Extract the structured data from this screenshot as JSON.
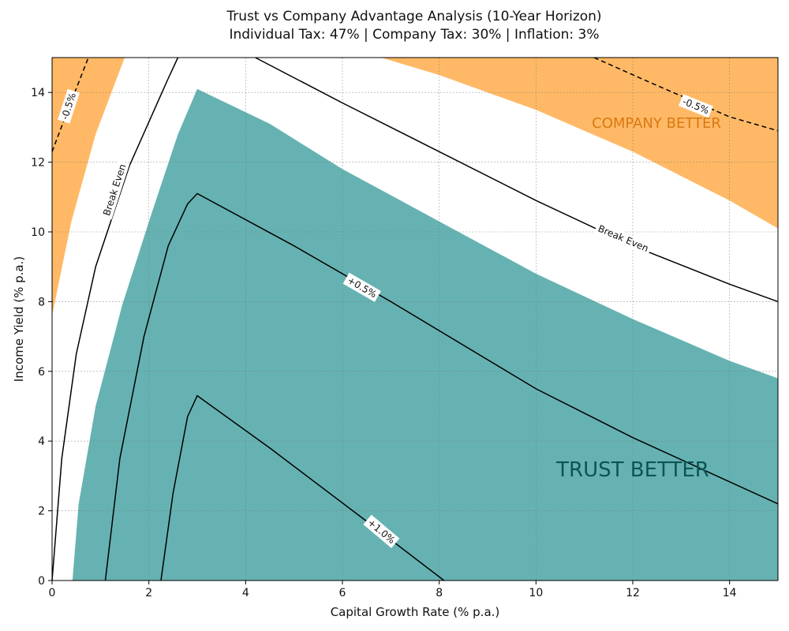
{
  "chart_data": {
    "type": "contour",
    "title_line1": "Trust vs Company Advantage Analysis (10-Year Horizon)",
    "title_line2": "Individual Tax: 47% | Company Tax: 30% | Inflation: 3%",
    "xlabel": "Capital Growth Rate (% p.a.)",
    "ylabel": "Income Yield (% p.a.)",
    "xlim": [
      0,
      15
    ],
    "ylim": [
      0,
      15
    ],
    "xticks": [
      0,
      2,
      4,
      6,
      8,
      10,
      12,
      14
    ],
    "yticks": [
      0,
      2,
      4,
      6,
      8,
      10,
      12,
      14
    ],
    "grid": true,
    "colors": {
      "trust": "#66b2b2",
      "company": "#ffb966",
      "trust_text": "#0d5454",
      "company_text": "#d87810",
      "line": "#000000"
    },
    "regions": {
      "trust_better": {
        "label": "TRUST BETTER",
        "boundary": [
          [
            0.42,
            0
          ],
          [
            0.55,
            2.2
          ],
          [
            0.9,
            5
          ],
          [
            1.45,
            7.9
          ],
          [
            2.05,
            10.5
          ],
          [
            2.6,
            12.8
          ],
          [
            3.0,
            14.1
          ],
          [
            4.5,
            13.1
          ],
          [
            6,
            11.8
          ],
          [
            8,
            10.3
          ],
          [
            10,
            8.8
          ],
          [
            12,
            7.5
          ],
          [
            14,
            6.3
          ],
          [
            15,
            5.8
          ],
          [
            15,
            0
          ]
        ]
      },
      "company_better": [
        {
          "label": "",
          "boundary": [
            [
              0,
              7.6
            ],
            [
              0.4,
              10.3
            ],
            [
              0.9,
              12.8
            ],
            [
              1.5,
              15
            ],
            [
              0,
              15
            ]
          ]
        },
        {
          "label": "COMPANY BETTER",
          "boundary": [
            [
              6.8,
              15
            ],
            [
              8,
              14.5
            ],
            [
              10,
              13.5
            ],
            [
              12,
              12.3
            ],
            [
              14,
              10.9
            ],
            [
              15,
              10.1
            ],
            [
              15,
              15
            ]
          ]
        }
      ]
    },
    "contours": [
      {
        "level": "Break Even",
        "style": "solid",
        "segments": [
          [
            [
              0,
              0
            ],
            [
              0.2,
              3.5
            ],
            [
              0.5,
              6.5
            ],
            [
              0.9,
              9
            ],
            [
              1.6,
              11.9
            ],
            [
              2.4,
              14.4
            ],
            [
              2.6,
              15
            ]
          ],
          [
            [
              4.2,
              15
            ],
            [
              6,
              13.7
            ],
            [
              8,
              12.3
            ],
            [
              10,
              10.9
            ],
            [
              12,
              9.6
            ],
            [
              14,
              8.5
            ],
            [
              15,
              8
            ]
          ]
        ]
      },
      {
        "level": "+0.5%",
        "style": "solid",
        "segments": [
          [
            [
              1.1,
              0
            ],
            [
              1.4,
              3.5
            ],
            [
              1.9,
              7
            ],
            [
              2.4,
              9.6
            ],
            [
              2.8,
              10.8
            ],
            [
              3.0,
              11.1
            ],
            [
              5,
              9.6
            ],
            [
              7,
              8
            ],
            [
              10,
              5.5
            ],
            [
              12,
              4.1
            ],
            [
              15,
              2.2
            ]
          ]
        ]
      },
      {
        "level": "+1.0%",
        "style": "solid",
        "segments": [
          [
            [
              2.25,
              0
            ],
            [
              2.5,
              2.5
            ],
            [
              2.8,
              4.7
            ],
            [
              3.0,
              5.3
            ],
            [
              4.5,
              3.8
            ],
            [
              6.5,
              1.7
            ],
            [
              8.1,
              0
            ]
          ]
        ]
      },
      {
        "level": "-0.5%",
        "style": "dashed",
        "segments": [
          [
            [
              0,
              12.3
            ],
            [
              0.3,
              13.4
            ],
            [
              0.75,
              15
            ]
          ],
          [
            [
              11.2,
              15
            ],
            [
              12.5,
              14.2
            ],
            [
              14,
              13.3
            ],
            [
              15,
              12.9
            ]
          ]
        ]
      }
    ],
    "contour_labels": [
      {
        "text": "Break Even",
        "x": 1.3,
        "y": 11.2,
        "angle": -72
      },
      {
        "text": "Break Even",
        "x": 11.8,
        "y": 9.8,
        "angle": 23
      },
      {
        "text": "+0.5%",
        "x": 6.4,
        "y": 8.4,
        "angle": 30
      },
      {
        "text": "+1.0%",
        "x": 6.8,
        "y": 1.4,
        "angle": 40
      },
      {
        "text": "-0.5%",
        "x": 0.35,
        "y": 13.6,
        "angle": -72
      },
      {
        "text": "-0.5%",
        "x": 13.3,
        "y": 13.6,
        "angle": 22
      }
    ]
  }
}
